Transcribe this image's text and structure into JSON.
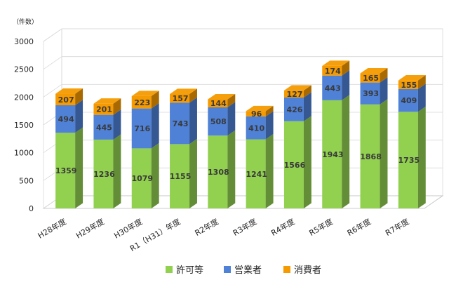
{
  "chart_data": {
    "type": "bar",
    "stacked": true,
    "three_d": true,
    "unit_label": "（件数）",
    "categories": [
      "H28年度",
      "H29年度",
      "H30年度",
      "R1（H31）年度",
      "R2年度",
      "R3年度",
      "R4年度",
      "R5年度",
      "R6年度",
      "R7年度"
    ],
    "series": [
      {
        "name": "許可等",
        "color": "#92d050",
        "values": [
          1359,
          1236,
          1079,
          1155,
          1308,
          1241,
          1566,
          1943,
          1868,
          1735
        ]
      },
      {
        "name": "営業者",
        "color": "#4f81d6",
        "values": [
          494,
          445,
          716,
          743,
          508,
          410,
          426,
          443,
          393,
          409
        ]
      },
      {
        "name": "消費者",
        "color": "#f59a00",
        "values": [
          207,
          201,
          223,
          157,
          144,
          96,
          127,
          174,
          165,
          155
        ]
      }
    ],
    "ylim": [
      0,
      3000
    ],
    "yticks": [
      0,
      500,
      1000,
      1500,
      2000,
      2500,
      3000
    ],
    "grid": true,
    "legend_position": "bottom"
  }
}
